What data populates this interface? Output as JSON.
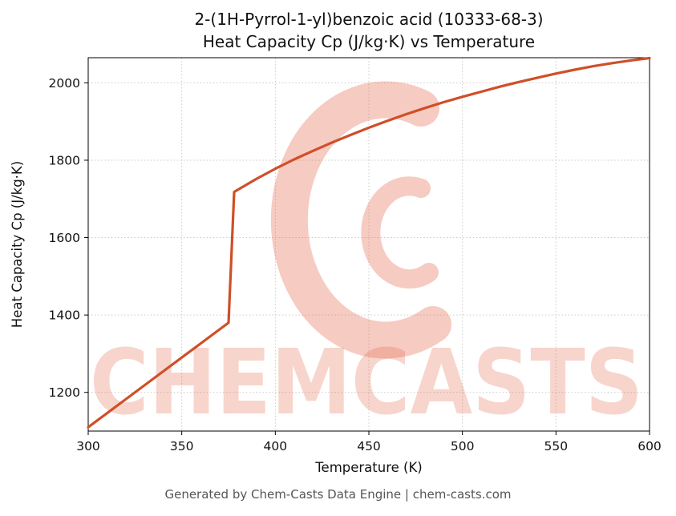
{
  "header": {
    "title_line1": "2-(1H-Pyrrol-1-yl)benzoic acid (10333-68-3)",
    "title_line2": "Heat Capacity Cp (J/kg·K) vs Temperature"
  },
  "watermark": {
    "text": "CHEMCASTS",
    "color": "#e4674b"
  },
  "footer": {
    "text": "Generated by Chem-Casts Data Engine | chem-casts.com"
  },
  "chart_data": {
    "type": "line",
    "title": "2-(1H-Pyrrol-1-yl)benzoic acid (10333-68-3) Heat Capacity Cp (J/kg·K) vs Temperature",
    "xlabel": "Temperature (K)",
    "ylabel": "Heat Capacity Cp (J/kg·K)",
    "xlim": [
      300,
      600
    ],
    "ylim": [
      1100,
      2065
    ],
    "xticks": [
      300,
      350,
      400,
      450,
      500,
      550,
      600
    ],
    "yticks": [
      1200,
      1400,
      1600,
      1800,
      2000
    ],
    "grid": true,
    "legend": "none",
    "line_color": "#cf4f28",
    "line_width": 3.2,
    "series": [
      {
        "name": "Heat Capacity Cp (J/kg·K)",
        "x": [
          300,
          310,
          320,
          330,
          340,
          350,
          360,
          370,
          375,
          378,
          380,
          390,
          400,
          410,
          420,
          430,
          440,
          450,
          460,
          470,
          480,
          490,
          500,
          510,
          520,
          530,
          540,
          550,
          560,
          570,
          580,
          590,
          600
        ],
        "y": [
          1110,
          1146,
          1182,
          1218,
          1254,
          1290,
          1326,
          1362,
          1380,
          1718,
          1724,
          1752,
          1778,
          1802,
          1824,
          1845,
          1865,
          1884,
          1902,
          1919,
          1935,
          1950,
          1964,
          1977,
          1990,
          2002,
          2013,
          2024,
          2034,
          2043,
          2051,
          2058,
          2064
        ]
      }
    ]
  }
}
